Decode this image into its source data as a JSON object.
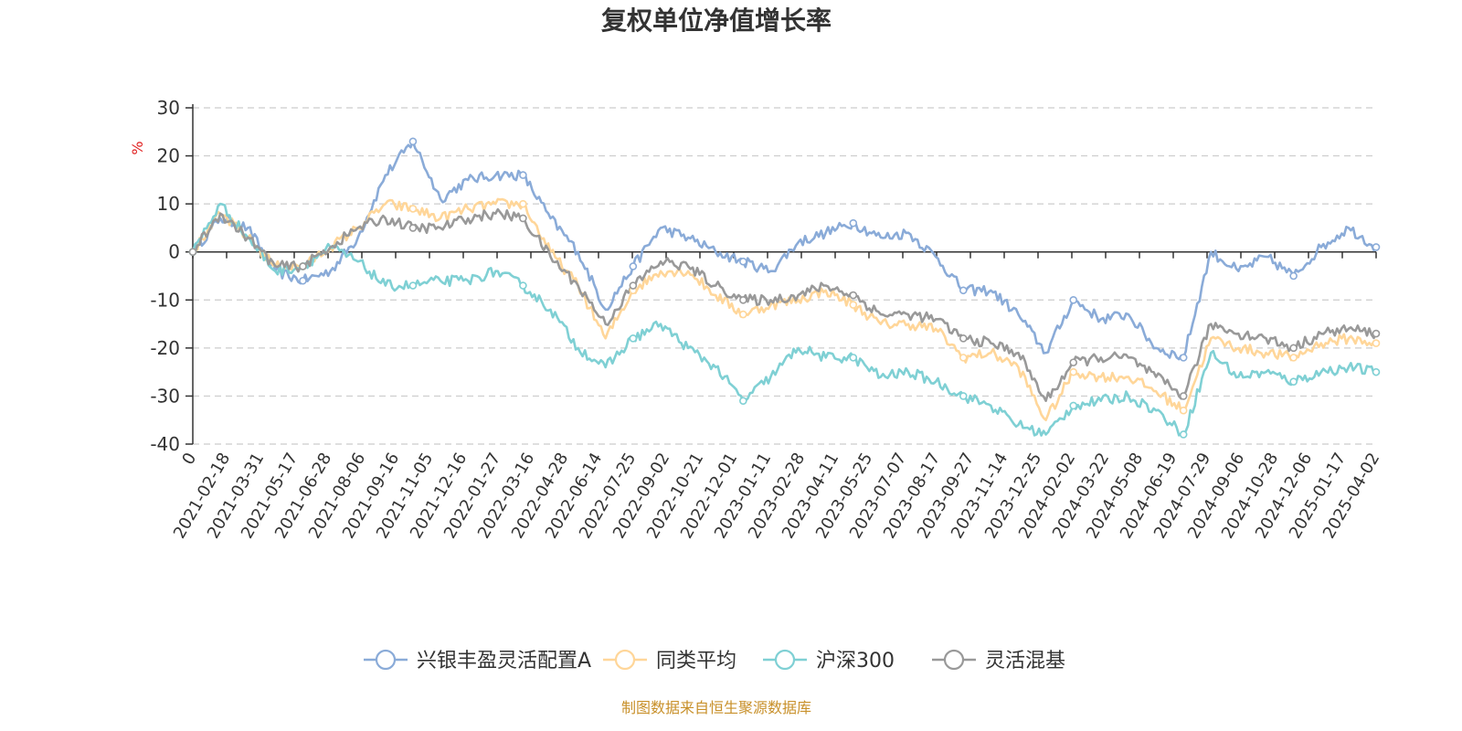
{
  "chart_data": {
    "type": "line",
    "title": "复权单位净值增长率",
    "ylabel": "%",
    "ylim": [
      -40,
      30
    ],
    "yticks": [
      "30",
      "20",
      "10",
      "0",
      "-10",
      "-20",
      "-30",
      "-40"
    ],
    "xticks": [
      "0",
      "2021-02-18",
      "2021-03-31",
      "2021-05-17",
      "2021-06-28",
      "2021-08-06",
      "2021-09-16",
      "2021-11-05",
      "2021-12-16",
      "2022-01-27",
      "2022-03-16",
      "2022-04-28",
      "2022-06-14",
      "2022-07-25",
      "2022-09-02",
      "2022-10-21",
      "2022-12-01",
      "2023-01-11",
      "2023-02-28",
      "2023-04-11",
      "2023-05-25",
      "2023-07-07",
      "2023-08-17",
      "2023-09-27",
      "2023-11-14",
      "2023-12-25",
      "2024-02-02",
      "2024-03-22",
      "2024-05-08",
      "2024-06-19",
      "2024-07-29",
      "2024-09-06",
      "2024-10-28",
      "2024-12-06",
      "2025-01-17",
      "2025-04-02"
    ],
    "grid": true,
    "legend_position": "bottom",
    "series": [
      {
        "name": "兴银丰盈灵活配置A",
        "color": "#8aabd8",
        "values": [
          0,
          7,
          5,
          -4,
          -6,
          -4,
          3,
          16,
          23,
          11,
          15,
          16,
          16,
          7,
          0,
          -12,
          -3,
          5,
          3,
          0,
          -2,
          -4,
          2,
          4,
          6,
          3,
          4,
          -1,
          -8,
          -8,
          -13,
          -21,
          -10,
          -14,
          -13,
          -20,
          -22,
          0,
          -4,
          -1,
          -5,
          1,
          5,
          1
        ]
      },
      {
        "name": "同类平均",
        "color": "#ffd699",
        "values": [
          0,
          8,
          3,
          -3,
          -3,
          1,
          5,
          10,
          9,
          7,
          9,
          10,
          10,
          0,
          -7,
          -18,
          -8,
          -4,
          -4,
          -9,
          -13,
          -11,
          -10,
          -8,
          -11,
          -15,
          -15,
          -16,
          -22,
          -21,
          -24,
          -35,
          -25,
          -26,
          -26,
          -29,
          -33,
          -18,
          -20,
          -21,
          -22,
          -19,
          -18,
          -19
        ]
      },
      {
        "name": "沪深300",
        "color": "#7fd0d4",
        "values": [
          0,
          10,
          3,
          -4,
          -3,
          1,
          -2,
          -7,
          -7,
          -6,
          -6,
          -4,
          -7,
          -12,
          -20,
          -24,
          -18,
          -15,
          -20,
          -24,
          -31,
          -26,
          -20,
          -22,
          -22,
          -26,
          -25,
          -27,
          -30,
          -32,
          -36,
          -38,
          -32,
          -31,
          -30,
          -33,
          -38,
          -21,
          -26,
          -25,
          -27,
          -25,
          -24,
          -25
        ]
      },
      {
        "name": "灵活混基",
        "color": "#999999",
        "values": [
          0,
          8,
          3,
          -3,
          -3,
          1,
          5,
          7,
          5,
          5,
          7,
          8,
          7,
          -1,
          -7,
          -15,
          -7,
          -2,
          -3,
          -7,
          -10,
          -10,
          -9,
          -7,
          -9,
          -13,
          -13,
          -14,
          -18,
          -19,
          -21,
          -31,
          -23,
          -22,
          -22,
          -26,
          -30,
          -15,
          -17,
          -18,
          -20,
          -17,
          -16,
          -17
        ]
      }
    ]
  },
  "source": {
    "text": "制图数据来自恒生聚源数据库",
    "color": "#c8902a"
  }
}
